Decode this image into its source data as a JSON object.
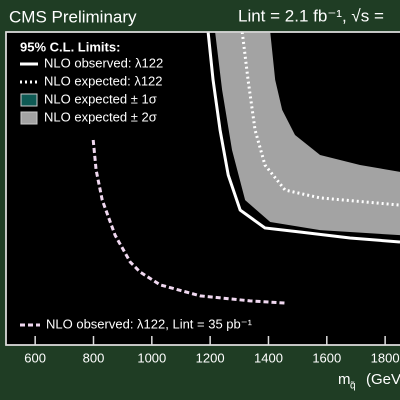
{
  "chart_data": {
    "type": "line",
    "title": "CMS Preliminary",
    "subtitle": "Lint = 2.1 fb⁻¹,  √s =",
    "x_label": "m",
    "x_label_sub": "q̃",
    "x_label_unit": "(GeV",
    "legend_title": "95% C.L. Limits:",
    "xlim": [
      500,
      1851
    ],
    "ylim": [
      0,
      100
    ],
    "xticks": [
      600,
      800,
      1000,
      1200,
      1400,
      1600,
      1800
    ],
    "bands": [
      {
        "name": "NLO expected ± 2σ",
        "color": "#a3a3a3",
        "lower": {
          "x": [
            1217,
            1241,
            1275,
            1320,
            1406,
            1577,
            1851
          ],
          "values": [
            100,
            81.5,
            62.3,
            46.3,
            39.3,
            36.7,
            35.1
          ]
        },
        "upper": {
          "x": [
            1406,
            1423,
            1447,
            1491,
            1577,
            1714,
            1851
          ],
          "values": [
            100,
            84.7,
            75.1,
            67.1,
            60.7,
            57.5,
            55.3
          ]
        }
      },
      {
        "name": "NLO expected ± 1σ",
        "color": "#0e5a54",
        "lower": {
          "x": [
            1262,
            1286,
            1320,
            1365,
            1440,
            1577,
            1851
          ],
          "values": [
            100,
            81.5,
            63.9,
            51.1,
            44.7,
            42.5,
            39.9
          ]
        },
        "upper": {
          "x": [
            1365,
            1378,
            1398,
            1440,
            1508,
            1646,
            1851
          ],
          "values": [
            100,
            84.7,
            70.3,
            62.3,
            55.9,
            52.7,
            50.2
          ]
        }
      }
    ],
    "series": [
      {
        "name": "NLO observed: λ122",
        "color": "#ffffff",
        "style": "solid",
        "x": [
          1193,
          1210,
          1234,
          1262,
          1303,
          1388,
          1508,
          1680,
          1851
        ],
        "values": [
          100,
          84.7,
          68.7,
          54.3,
          43.1,
          37.4,
          36.1,
          34.2,
          32.9
        ]
      },
      {
        "name": "NLO expected: λ122",
        "color": "#ffffff",
        "style": "dotted",
        "x": [
          1310,
          1330,
          1354,
          1388,
          1457,
          1577,
          1851
        ],
        "values": [
          100,
          84.7,
          68.7,
          57.5,
          49.5,
          47.0,
          44.7
        ]
      },
      {
        "name": "NLO observed: λ122, Lint = 35 pb⁻¹",
        "color": "#f0d8f0",
        "style": "dashed",
        "x": [
          799,
          809,
          830,
          874,
          926,
          960,
          1029,
          1166,
          1337,
          1457
        ],
        "values": [
          65.5,
          55.9,
          46.3,
          35.1,
          26.5,
          23.3,
          19.2,
          15.7,
          14.1,
          13.4
        ]
      }
    ]
  }
}
